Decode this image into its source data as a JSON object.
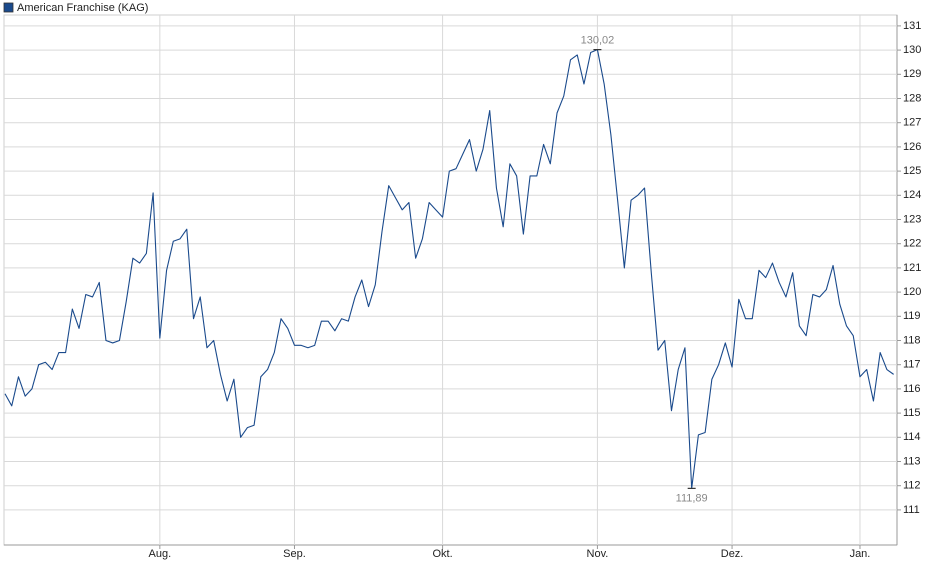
{
  "chart_data": {
    "type": "line",
    "series": [
      {
        "name": "American Franchise (KAG)",
        "color": "#1a4a8c",
        "values": [
          115.8,
          115.3,
          116.5,
          115.7,
          116.0,
          117.0,
          117.1,
          116.8,
          117.5,
          117.5,
          119.3,
          118.5,
          119.9,
          119.8,
          120.4,
          118.0,
          117.9,
          118.0,
          119.6,
          121.4,
          121.2,
          121.6,
          124.1,
          118.1,
          120.9,
          122.1,
          122.2,
          122.6,
          118.9,
          119.8,
          117.7,
          118.0,
          116.6,
          115.5,
          116.4,
          114.0,
          114.4,
          114.5,
          116.5,
          116.8,
          117.5,
          118.9,
          118.5,
          117.8,
          117.8,
          117.7,
          117.8,
          118.8,
          118.8,
          118.4,
          118.9,
          118.8,
          119.8,
          120.5,
          119.4,
          120.3,
          122.5,
          124.4,
          123.9,
          123.4,
          123.7,
          121.4,
          122.2,
          123.7,
          123.4,
          123.1,
          125.0,
          125.1,
          125.7,
          126.3,
          125.0,
          125.9,
          127.5,
          124.3,
          122.7,
          125.3,
          124.8,
          122.4,
          124.8,
          124.8,
          126.1,
          125.3,
          127.4,
          128.1,
          129.6,
          129.8,
          128.6,
          129.9,
          130.02,
          128.6,
          126.5,
          123.8,
          121.0,
          123.8,
          124.0,
          124.3,
          120.8,
          117.6,
          118.0,
          115.1,
          116.8,
          117.7,
          111.89,
          114.1,
          114.2,
          116.4,
          117.0,
          117.9,
          116.9,
          119.7,
          118.9,
          118.9,
          120.9,
          120.6,
          121.2,
          120.4,
          119.8,
          120.8,
          118.6,
          118.2,
          119.9,
          119.8,
          120.1,
          121.1,
          119.5,
          118.6,
          118.2,
          116.5,
          116.8,
          115.5,
          117.5,
          116.8,
          116.6
        ]
      }
    ],
    "annotations": [
      {
        "label": "130,02",
        "value": 130.02,
        "x": 88
      },
      {
        "label": "111,89",
        "value": 111.89,
        "x": 102
      }
    ],
    "xlim": [
      0,
      132.5
    ],
    "xticks": [
      {
        "value": 23,
        "label": "Aug."
      },
      {
        "value": 43,
        "label": "Sep."
      },
      {
        "value": 65,
        "label": "Okt."
      },
      {
        "value": 88,
        "label": "Nov."
      },
      {
        "value": 108,
        "label": "Dez."
      },
      {
        "value": 127,
        "label": "Jan."
      }
    ],
    "ylim": [
      109.55,
      131.45
    ],
    "yticks": [
      111,
      112,
      113,
      114,
      115,
      116,
      117,
      118,
      119,
      120,
      121,
      122,
      123,
      124,
      125,
      126,
      127,
      128,
      129,
      130,
      131
    ],
    "grid": true
  }
}
